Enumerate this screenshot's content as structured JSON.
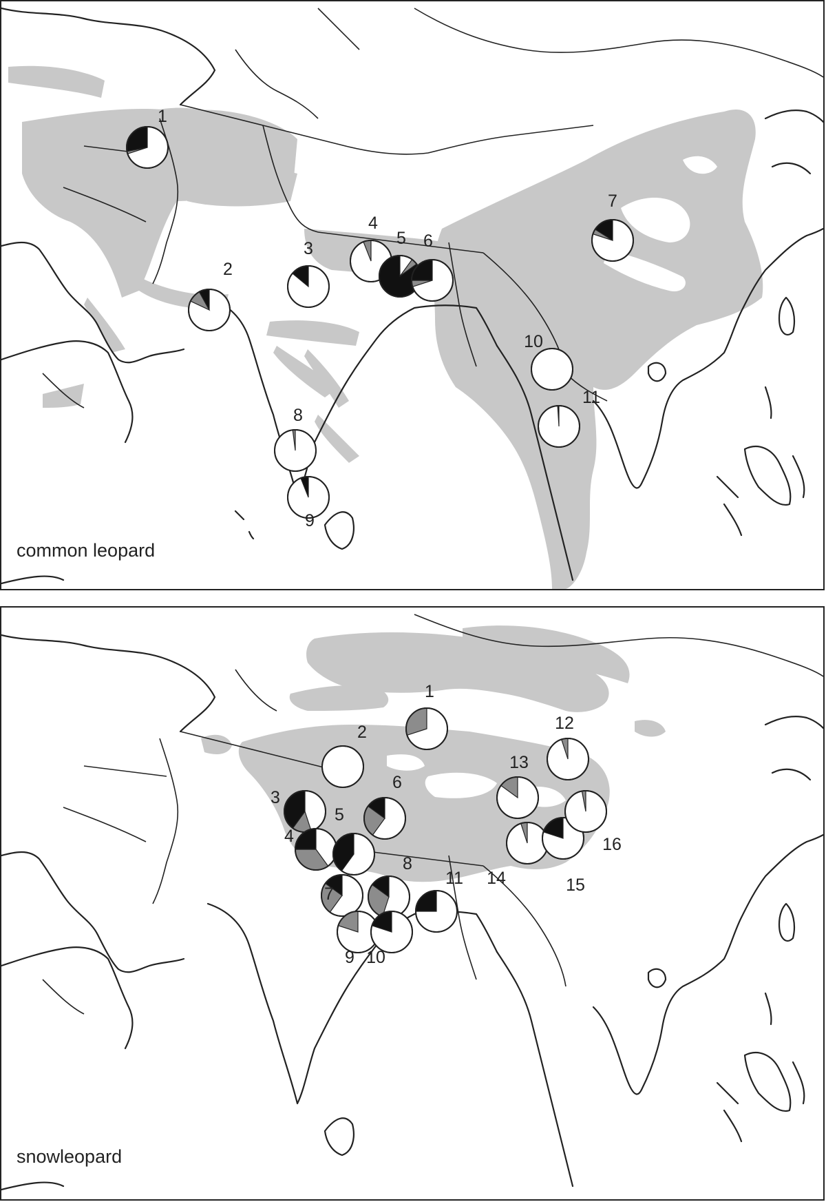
{
  "colors": {
    "black": "#111111",
    "grey": "#8c8c8c",
    "white": "#ffffff",
    "range": "#c8c8c8"
  },
  "panels": [
    {
      "label": "common leopard",
      "populations": [
        {
          "id": "1",
          "fractions": [
            0.7,
            0.02,
            0.28
          ]
        },
        {
          "id": "2",
          "fractions": [
            0.82,
            0.1,
            0.08
          ]
        },
        {
          "id": "3",
          "fractions": [
            0.86,
            0.0,
            0.14
          ]
        },
        {
          "id": "4",
          "fractions": [
            0.94,
            0.06,
            0.0
          ]
        },
        {
          "id": "5",
          "fractions": [
            0.1,
            0.05,
            0.85
          ]
        },
        {
          "id": "6",
          "fractions": [
            0.7,
            0.05,
            0.25
          ]
        },
        {
          "id": "7",
          "fractions": [
            0.8,
            0.04,
            0.16
          ]
        },
        {
          "id": "8",
          "fractions": [
            0.98,
            0.02,
            0.0
          ]
        },
        {
          "id": "9",
          "fractions": [
            0.94,
            0.0,
            0.06
          ]
        },
        {
          "id": "10",
          "fractions": [
            1.0,
            0.0,
            0.0
          ]
        },
        {
          "id": "11",
          "fractions": [
            0.99,
            0.0,
            0.01
          ]
        }
      ]
    },
    {
      "label": "snowleopard",
      "populations": [
        {
          "id": "1",
          "fractions": [
            0.7,
            0.3,
            0.0
          ]
        },
        {
          "id": "2",
          "fractions": [
            1.0,
            0.0,
            0.0
          ]
        },
        {
          "id": "3",
          "fractions": [
            0.45,
            0.15,
            0.4
          ]
        },
        {
          "id": "4",
          "fractions": [
            0.4,
            0.35,
            0.25
          ]
        },
        {
          "id": "5",
          "fractions": [
            0.6,
            0.0,
            0.4
          ]
        },
        {
          "id": "6",
          "fractions": [
            0.6,
            0.25,
            0.15
          ]
        },
        {
          "id": "7",
          "fractions": [
            0.6,
            0.25,
            0.15
          ]
        },
        {
          "id": "8",
          "fractions": [
            0.55,
            0.3,
            0.15
          ]
        },
        {
          "id": "9",
          "fractions": [
            0.8,
            0.2,
            0.0
          ]
        },
        {
          "id": "10",
          "fractions": [
            0.8,
            0.0,
            0.2
          ]
        },
        {
          "id": "11",
          "fractions": [
            0.75,
            0.0,
            0.25
          ]
        },
        {
          "id": "12",
          "fractions": [
            0.95,
            0.05,
            0.0
          ]
        },
        {
          "id": "13",
          "fractions": [
            0.85,
            0.15,
            0.0
          ]
        },
        {
          "id": "14",
          "fractions": [
            0.95,
            0.05,
            0.0
          ]
        },
        {
          "id": "15",
          "fractions": [
            0.8,
            0.0,
            0.2
          ]
        },
        {
          "id": "16",
          "fractions": [
            0.97,
            0.03,
            0.0
          ]
        },
        {
          "id": "9",
          "fractions": [
            0.0,
            0.0,
            0.0
          ]
        }
      ]
    }
  ]
}
